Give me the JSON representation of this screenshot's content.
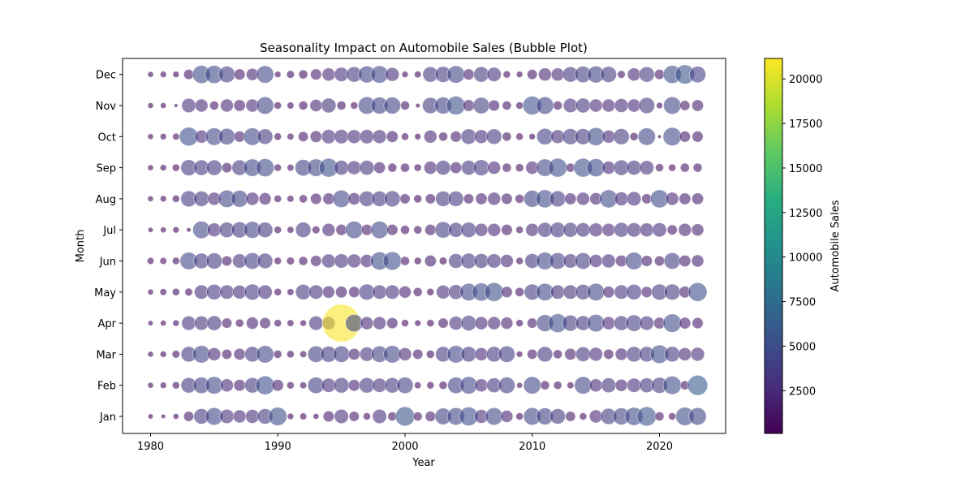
{
  "chart_data": {
    "type": "scatter",
    "subtype": "bubble",
    "title": "Seasonality Impact on Automobile Sales (Bubble Plot)",
    "xlabel": "Year",
    "ylabel": "Month",
    "xlim": [
      1977.8,
      2025.2
    ],
    "x_ticks": [
      1980,
      1990,
      2000,
      2010,
      2020
    ],
    "months": [
      "Jan",
      "Feb",
      "Mar",
      "Apr",
      "May",
      "Jun",
      "Jul",
      "Aug",
      "Sep",
      "Oct",
      "Nov",
      "Dec"
    ],
    "years": [
      1980,
      1981,
      1982,
      1983,
      1984,
      1985,
      1986,
      1987,
      1988,
      1989,
      1990,
      1991,
      1992,
      1993,
      1994,
      1995,
      1996,
      1997,
      1998,
      1999,
      2000,
      2001,
      2002,
      2003,
      2004,
      2005,
      2006,
      2007,
      2008,
      2009,
      2010,
      2011,
      2012,
      2013,
      2014,
      2015,
      2016,
      2017,
      2018,
      2019,
      2020,
      2021,
      2022,
      2023
    ],
    "size_encodes": "Automobile Sales",
    "color_encodes": "Automobile Sales",
    "colormap": "viridis",
    "marker_alpha": 0.6,
    "series": [
      {
        "month": "Jan",
        "values": [
          400,
          300,
          500,
          1500,
          3500,
          4500,
          3000,
          2500,
          2800,
          3500,
          5000,
          600,
          700,
          500,
          1800,
          3000,
          1500,
          800,
          3000,
          1200,
          5500,
          1200,
          1600,
          4000,
          4500,
          5200,
          2800,
          4500,
          2200,
          800,
          4500,
          4200,
          3500,
          1500,
          800,
          2500,
          3800,
          4200,
          4800,
          5500,
          1200,
          800,
          5000,
          4500
        ]
      },
      {
        "month": "Feb",
        "values": [
          500,
          600,
          800,
          3500,
          4000,
          4500,
          2500,
          2000,
          3500,
          5200,
          2000,
          800,
          700,
          4000,
          3000,
          3500,
          2000,
          3500,
          3000,
          3500,
          4000,
          700,
          800,
          1000,
          4000,
          4500,
          2500,
          3200,
          4000,
          500,
          4500,
          1200,
          1000,
          700,
          4500,
          2500,
          3200,
          2200,
          3000,
          3200,
          3800,
          5000,
          1200,
          6000
        ]
      },
      {
        "month": "Mar",
        "values": [
          500,
          600,
          900,
          3500,
          4500,
          2500,
          1500,
          2000,
          3500,
          4500,
          1000,
          800,
          700,
          4000,
          3800,
          4000,
          2000,
          3000,
          4000,
          4500,
          2500,
          1500,
          1000,
          3500,
          4500,
          3500,
          2500,
          3500,
          4000,
          600,
          1500,
          3500,
          1200,
          2000,
          3200,
          2800,
          1500,
          2200,
          3500,
          3500,
          5000,
          3500,
          2500,
          2800
        ]
      },
      {
        "month": "Apr",
        "values": [
          400,
          500,
          600,
          3000,
          3000,
          3200,
          1500,
          1000,
          2200,
          1800,
          800,
          700,
          600,
          3000,
          2500,
          21000,
          4500,
          2500,
          2500,
          1800,
          800,
          600,
          800,
          1500,
          2800,
          3500,
          2500,
          2500,
          2200,
          800,
          1500,
          4200,
          5200,
          3800,
          3200,
          4500,
          2500,
          3200,
          4000,
          3000,
          2000,
          5000,
          2000,
          1800
        ]
      },
      {
        "month": "May",
        "values": [
          500,
          700,
          800,
          900,
          3000,
          3500,
          3000,
          2800,
          3800,
          3000,
          800,
          700,
          3500,
          3000,
          2200,
          2000,
          1800,
          3800,
          3000,
          3000,
          2200,
          1200,
          800,
          2800,
          3200,
          4500,
          4800,
          5200,
          1800,
          1200,
          3800,
          4500,
          3000,
          3000,
          3500,
          4500,
          2000,
          3000,
          3500,
          1800,
          3800,
          3800,
          2000,
          5200
        ]
      },
      {
        "month": "Jun",
        "values": [
          700,
          700,
          800,
          4500,
          3500,
          3800,
          1500,
          3000,
          4000,
          3500,
          800,
          900,
          1200,
          1800,
          2800,
          3000,
          2800,
          2500,
          4800,
          5000,
          1200,
          800,
          2000,
          900,
          3200,
          3500,
          3200,
          3000,
          2500,
          800,
          3200,
          4500,
          4000,
          3000,
          4000,
          2500,
          2800,
          2000,
          4500,
          1800,
          1500,
          4000,
          2000,
          2200
        ]
      },
      {
        "month": "Jul",
        "values": [
          400,
          500,
          600,
          300,
          4500,
          2800,
          3500,
          3800,
          4200,
          3500,
          800,
          700,
          3500,
          900,
          2500,
          1800,
          4500,
          1800,
          4500,
          1800,
          1200,
          1000,
          1800,
          4000,
          3200,
          3500,
          2500,
          2500,
          1800,
          800,
          2500,
          3200,
          3500,
          3200,
          3000,
          2800,
          2500,
          3200,
          3000,
          2800,
          3000,
          1500,
          2500,
          2200
        ]
      },
      {
        "month": "Aug",
        "values": [
          500,
          600,
          800,
          3800,
          3500,
          2500,
          4500,
          4200,
          2500,
          2200,
          800,
          700,
          1000,
          1800,
          2000,
          4500,
          2200,
          3500,
          3500,
          3800,
          1500,
          1000,
          1500,
          3500,
          3500,
          1500,
          2000,
          2500,
          1800,
          1200,
          4200,
          4800,
          3800,
          2000,
          2500,
          2200,
          4800,
          2800,
          3000,
          1500,
          4800,
          2500,
          2000,
          2000
        ]
      },
      {
        "month": "Sep",
        "values": [
          500,
          600,
          800,
          3800,
          3500,
          3500,
          1500,
          3500,
          4500,
          4800,
          800,
          700,
          4000,
          4500,
          5200,
          3200,
          2800,
          3200,
          2000,
          1200,
          1200,
          800,
          2500,
          3200,
          2000,
          3200,
          3800,
          2500,
          1200,
          1000,
          2500,
          4500,
          5200,
          1200,
          5200,
          4800,
          2500,
          3500,
          3200,
          3000,
          1000,
          800,
          1200,
          1200
        ]
      },
      {
        "month": "Oct",
        "values": [
          500,
          600,
          700,
          5200,
          2500,
          4500,
          4000,
          1800,
          4500,
          3500,
          800,
          700,
          1500,
          2000,
          3000,
          3000,
          2800,
          3000,
          2800,
          2000,
          800,
          600,
          2500,
          1200,
          1800,
          3500,
          2800,
          3500,
          1200,
          800,
          600,
          4000,
          2800,
          3800,
          3800,
          4800,
          2500,
          3800,
          1000,
          4500,
          200,
          5000,
          1800,
          1800
        ]
      },
      {
        "month": "Nov",
        "values": [
          500,
          500,
          200,
          3000,
          2500,
          1200,
          2500,
          2000,
          2500,
          4500,
          800,
          700,
          1200,
          2200,
          3200,
          1200,
          800,
          4500,
          4200,
          4200,
          1200,
          300,
          3800,
          4200,
          5200,
          2000,
          4000,
          1800,
          1200,
          800,
          5200,
          4500,
          1200,
          3000,
          3200,
          2500,
          2500,
          2800,
          2500,
          3800,
          600,
          4500,
          1500,
          2000
        ]
      },
      {
        "month": "Dec",
        "values": [
          500,
          600,
          600,
          1500,
          4800,
          4800,
          4000,
          1800,
          2200,
          4500,
          600,
          900,
          1200,
          1800,
          2500,
          3000,
          3500,
          4200,
          4500,
          2800,
          600,
          700,
          3500,
          3800,
          4500,
          1800,
          3500,
          3000,
          800,
          600,
          1500,
          2500,
          2500,
          3500,
          4000,
          4200,
          3800,
          900,
          2500,
          3500,
          1500,
          4800,
          5500,
          4000
        ]
      }
    ],
    "colorbar": {
      "label": "Automobile Sales",
      "vmin": 102,
      "vmax": 21147,
      "ticks": [
        2500,
        5000,
        7500,
        10000,
        12500,
        15000,
        17500,
        20000
      ]
    }
  }
}
